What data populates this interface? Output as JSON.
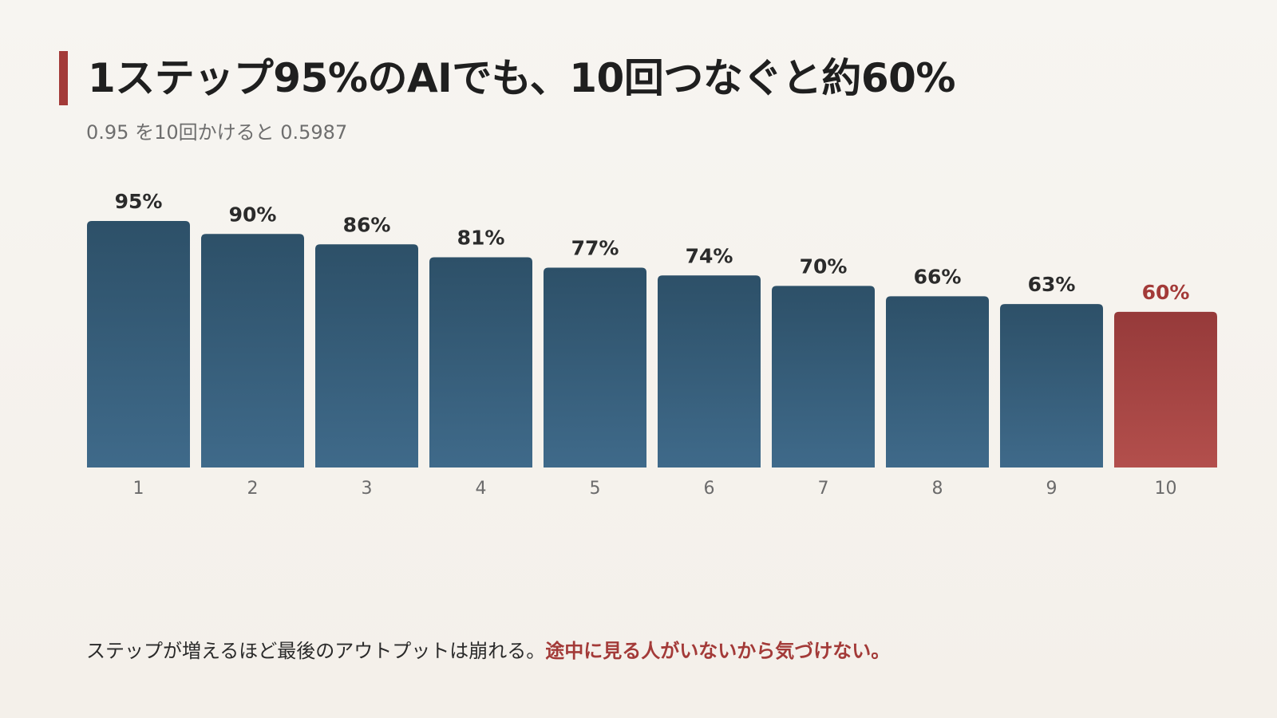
{
  "title": "1ステップ95%のAIでも、10回つなぐと約60%",
  "subtitle": "0.95 を10回かけると 0.5987",
  "caption": {
    "normal": "ステップが増えるほど最後のアウトプットは崩れる。",
    "emphasis": "途中に見る人がいないから気づけない。"
  },
  "colors": {
    "accent": "#a33a38",
    "bar_top": "#2d5068",
    "bar_bottom": "#3f6a8a",
    "highlight_top": "#963a3a",
    "highlight_bottom": "#b34f4c",
    "label": "#2b2b2b",
    "highlight_label": "#a33a38"
  },
  "chart_data": {
    "type": "bar",
    "title": "",
    "xlabel": "",
    "ylabel": "",
    "categories": [
      "1",
      "2",
      "3",
      "4",
      "5",
      "6",
      "7",
      "8",
      "9",
      "10"
    ],
    "values": [
      95,
      90,
      86,
      81,
      77,
      74,
      70,
      66,
      63,
      60
    ],
    "value_labels": [
      "95%",
      "90%",
      "86%",
      "81%",
      "77%",
      "74%",
      "70%",
      "66%",
      "63%",
      "60%"
    ],
    "unit": "%",
    "ylim": [
      0,
      95
    ],
    "highlight_index": 9,
    "grid": false,
    "legend": "none"
  }
}
